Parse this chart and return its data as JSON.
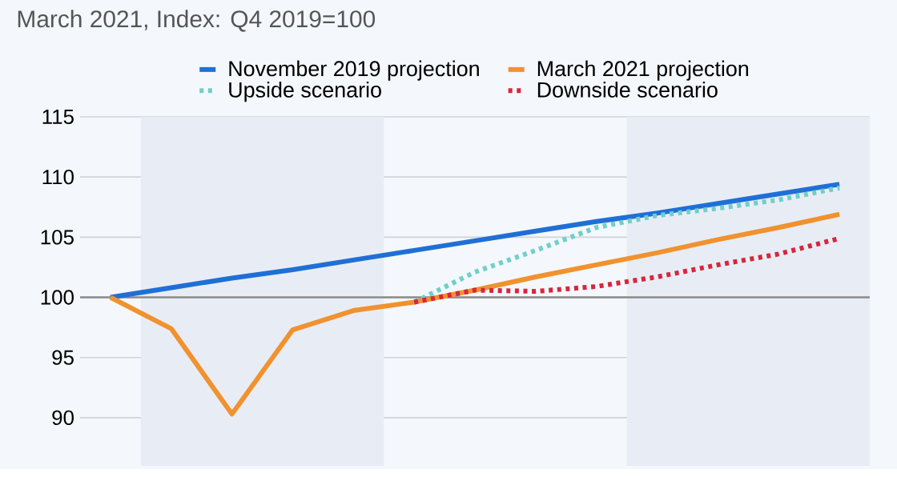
{
  "chart_data": {
    "type": "line",
    "title": "March 2021, Index: Q4 2019=100",
    "categories": [
      null,
      null,
      null,
      null,
      null,
      null,
      null,
      null,
      null,
      null,
      null,
      null,
      null
    ],
    "series": [
      {
        "name": "November 2019 projection",
        "color": "#1f6fd6",
        "values": [
          100,
          100.8,
          101.6,
          102.3,
          103.1,
          103.9,
          104.7,
          105.5,
          106.3,
          107.0,
          107.8,
          108.6,
          109.4
        ]
      },
      {
        "name": "March 2021 projection",
        "color": "#f0922f",
        "values": [
          100,
          97.4,
          90.3,
          97.3,
          98.9,
          99.6,
          100.6,
          101.7,
          102.7,
          103.7,
          104.8,
          105.8,
          106.9
        ]
      },
      {
        "name": "Upside scenario",
        "color": "#70cfc9",
        "line_style": "dotted",
        "values": [
          null,
          null,
          null,
          null,
          null,
          99.6,
          102.1,
          103.9,
          105.8,
          106.8,
          107.4,
          108.1,
          109.1
        ]
      },
      {
        "name": "Downside scenario",
        "color": "#d7263d",
        "line_style": "dotted",
        "values": [
          null,
          null,
          null,
          null,
          null,
          99.6,
          100.6,
          100.5,
          100.9,
          101.7,
          102.7,
          103.6,
          104.9
        ]
      }
    ],
    "ylim": [
      86,
      115
    ],
    "yticks": [
      90,
      95,
      100,
      105,
      110,
      115
    ],
    "grid": "y",
    "legend": "top",
    "tick_labels": "y",
    "line_style": "solid",
    "ref_lines": [
      {
        "axis": "y",
        "value": 100,
        "color": "#8a8a8a"
      }
    ]
  }
}
